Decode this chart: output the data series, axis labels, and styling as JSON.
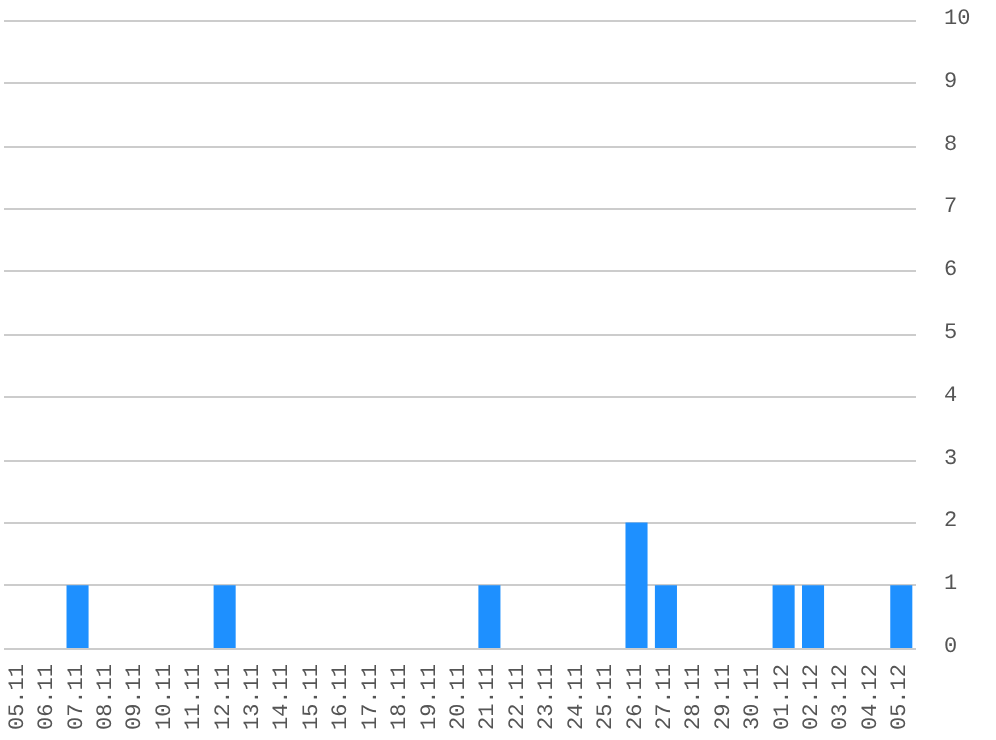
{
  "chart_data": {
    "type": "bar",
    "categories": [
      "05.11",
      "06.11",
      "07.11",
      "08.11",
      "09.11",
      "10.11",
      "11.11",
      "12.11",
      "13.11",
      "14.11",
      "15.11",
      "16.11",
      "17.11",
      "18.11",
      "19.11",
      "20.11",
      "21.11",
      "22.11",
      "23.11",
      "24.11",
      "25.11",
      "26.11",
      "27.11",
      "28.11",
      "29.11",
      "30.11",
      "01.12",
      "02.12",
      "03.12",
      "04.12",
      "05.12"
    ],
    "values": [
      0,
      0,
      1,
      0,
      0,
      0,
      0,
      1,
      0,
      0,
      0,
      0,
      0,
      0,
      0,
      0,
      1,
      0,
      0,
      0,
      0,
      2,
      1,
      0,
      0,
      0,
      1,
      1,
      0,
      0,
      1
    ],
    "color": "#1e90ff",
    "ylim": [
      0,
      10
    ],
    "yticks": [
      0,
      1,
      2,
      3,
      4,
      5,
      6,
      7,
      8,
      9,
      10
    ],
    "grid": "y"
  }
}
